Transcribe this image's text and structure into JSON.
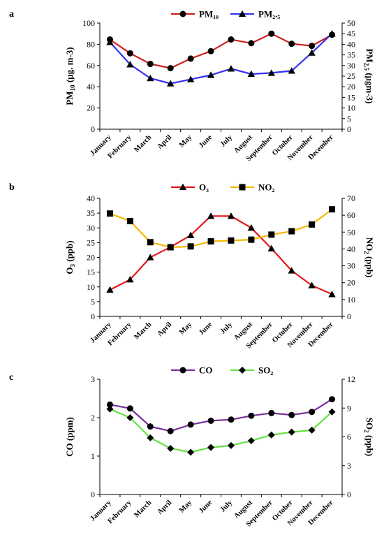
{
  "chart_data": [
    {
      "type": "line",
      "panel_label": "a",
      "categories": [
        "January",
        "February",
        "March",
        "April",
        "May",
        "June",
        "July",
        "August",
        "September",
        "October",
        "November",
        "December"
      ],
      "series": [
        {
          "name": "PM₁₀",
          "axis": "left",
          "color": "#cc1f1f",
          "marker": "circle",
          "values": [
            84.5,
            71.5,
            61.5,
            57.5,
            66.5,
            73.5,
            84.5,
            81,
            90,
            80.5,
            78.5,
            89
          ]
        },
        {
          "name": "PM₂.₅",
          "axis": "right",
          "color": "#3333ee",
          "marker": "triangle",
          "values": [
            41,
            30.5,
            24,
            21.5,
            23.5,
            25.5,
            28.5,
            26,
            26.5,
            27.5,
            36,
            45
          ]
        }
      ],
      "ylabel_left": "PM10 (µg. m-3)",
      "ylabel_right": "PM2.5 (µgm-3)",
      "ylim_left": [
        0,
        100
      ],
      "yticks_left": [
        0,
        20,
        40,
        60,
        80,
        100
      ],
      "ylim_right": [
        0,
        50
      ],
      "yticks_right": [
        0,
        5,
        10,
        15,
        20,
        25,
        30,
        35,
        40,
        45,
        50
      ],
      "legend": "top-center",
      "grid": false
    },
    {
      "type": "line",
      "panel_label": "b",
      "categories": [
        "January",
        "February",
        "March",
        "April",
        "May",
        "June",
        "July",
        "August",
        "September",
        "October",
        "November",
        "December"
      ],
      "series": [
        {
          "name": "O₃",
          "axis": "left",
          "color": "#e31a1c",
          "marker": "triangle",
          "values": [
            9,
            12.5,
            20,
            23.5,
            27.5,
            34,
            34,
            30,
            23,
            15.5,
            10.5,
            7.5
          ]
        },
        {
          "name": "NO₂",
          "axis": "right",
          "color": "#f5b800",
          "marker": "square",
          "values": [
            61,
            56.5,
            44,
            41,
            41.5,
            44.5,
            45,
            45.5,
            48.5,
            50.5,
            54.5,
            63.5
          ]
        }
      ],
      "ylabel_left": "O3 (ppb)",
      "ylabel_right": "NO2 (ppb)",
      "ylim_left": [
        0,
        40
      ],
      "yticks_left": [
        0,
        5,
        10,
        15,
        20,
        25,
        30,
        35,
        40
      ],
      "ylim_right": [
        0,
        70
      ],
      "yticks_right": [
        0,
        10,
        20,
        30,
        40,
        50,
        60,
        70
      ],
      "legend": "top-center",
      "grid": false
    },
    {
      "type": "line",
      "panel_label": "c",
      "categories": [
        "January",
        "February",
        "March",
        "April",
        "May",
        "June",
        "July",
        "August",
        "September",
        "October",
        "November",
        "December"
      ],
      "series": [
        {
          "name": "CO",
          "axis": "left",
          "color": "#7b2fa0",
          "marker": "circle",
          "values": [
            2.34,
            2.24,
            1.77,
            1.65,
            1.82,
            1.92,
            1.95,
            2.05,
            2.12,
            2.07,
            2.15,
            2.48
          ]
        },
        {
          "name": "SO₂",
          "axis": "right",
          "color": "#66e044",
          "marker": "diamond",
          "values": [
            8.9,
            8,
            5.9,
            4.8,
            4.4,
            4.9,
            5.1,
            5.6,
            6.2,
            6.5,
            6.7,
            8.6
          ]
        }
      ],
      "ylabel_left": "CO (ppm)",
      "ylabel_right": "SO2 (ppb)",
      "ylim_left": [
        0,
        3
      ],
      "yticks_left": [
        0,
        1,
        2,
        3
      ],
      "ylim_right": [
        0,
        12
      ],
      "yticks_right": [
        0,
        3,
        6,
        9,
        12
      ],
      "legend": "top-center",
      "grid": false
    }
  ]
}
